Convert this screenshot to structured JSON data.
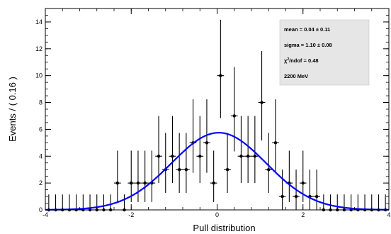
{
  "chart_data": {
    "type": "scatter",
    "xlabel": "Pull distribution",
    "ylabel": "Events / ( 0.16 )",
    "xlim": [
      -4,
      4
    ],
    "ylim": [
      0,
      15
    ],
    "x_ticks": [
      -4,
      -2,
      0,
      2,
      4
    ],
    "x_tick_labels": [
      "-4",
      "-2",
      "0",
      "2",
      "4"
    ],
    "y_ticks": [
      0,
      2,
      4,
      6,
      8,
      10,
      12,
      14
    ],
    "y_tick_labels": [
      "0",
      "2",
      "4",
      "6",
      "8",
      "10",
      "12",
      "14"
    ],
    "bin_width": 0.16,
    "x": [
      -3.92,
      -3.76,
      -3.6,
      -3.44,
      -3.28,
      -3.12,
      -2.96,
      -2.8,
      -2.64,
      -2.48,
      -2.32,
      -2.16,
      -2.0,
      -1.84,
      -1.68,
      -1.52,
      -1.36,
      -1.2,
      -1.04,
      -0.88,
      -0.72,
      -0.56,
      -0.4,
      -0.24,
      -0.08,
      0.08,
      0.24,
      0.4,
      0.56,
      0.72,
      0.88,
      1.04,
      1.2,
      1.36,
      1.52,
      1.68,
      1.84,
      2.0,
      2.16,
      2.32,
      2.48,
      2.64,
      2.8,
      2.96,
      3.12,
      3.28,
      3.44,
      3.6,
      3.76,
      3.92
    ],
    "y": [
      0,
      0,
      0,
      0,
      0,
      0,
      0,
      0,
      0,
      0,
      2,
      0,
      2,
      2,
      2,
      2,
      4,
      3,
      4,
      3,
      3,
      5,
      4,
      5,
      2,
      10,
      3,
      7,
      4,
      4,
      4,
      8,
      3,
      5,
      1,
      2,
      1,
      2,
      1,
      1,
      0,
      0,
      0,
      0,
      0,
      0,
      0,
      0,
      0,
      0
    ],
    "fit_curve": {
      "type": "gaussian",
      "mean": 0.04,
      "sigma": 1.1,
      "peak": 5.75,
      "color": "#0000ff"
    },
    "stats_box": {
      "lines": [
        "mean =  0.04  ±  0.11",
        "sigma =  1.10  ±  0.08",
        "/ndof = 0.48",
        "2200 MeV"
      ],
      "chi_symbol": "χ",
      "chi_sup": "2",
      "background": "#e6e6e6"
    },
    "grid": false,
    "legend": "none",
    "marker_color": "#000000"
  }
}
